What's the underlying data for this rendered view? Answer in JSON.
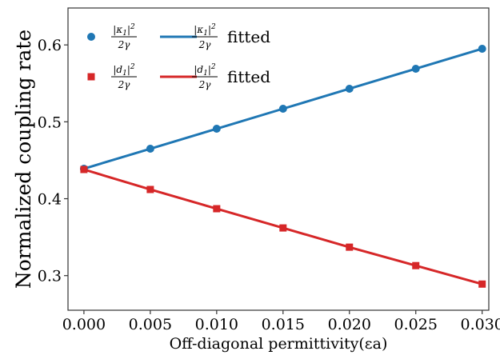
{
  "chart_data": {
    "type": "scatter",
    "xlabel": "Off-diagonal permittivity(εa)",
    "ylabel": "Normalized coupling rate",
    "xlim": [
      -0.0012,
      0.0305
    ],
    "ylim": [
      0.255,
      0.648
    ],
    "x_ticks": [
      "0.000",
      "0.005",
      "0.010",
      "0.015",
      "0.020",
      "0.025",
      "0.030"
    ],
    "y_ticks": [
      "0.3",
      "0.4",
      "0.5",
      "0.6"
    ],
    "grid": false,
    "legend_position": "top-left",
    "x": [
      0.0,
      0.005,
      0.01,
      0.015,
      0.02,
      0.025,
      0.03
    ],
    "series": [
      {
        "name": "|κ1|²/2γ",
        "marker": "circle",
        "color": "#1f77b4",
        "values": [
          0.439,
          0.465,
          0.491,
          0.517,
          0.543,
          0.569,
          0.595
        ]
      },
      {
        "name": "|d1|²/2γ",
        "marker": "square",
        "color": "#d62728",
        "values": [
          0.438,
          0.412,
          0.387,
          0.362,
          0.337,
          0.313,
          0.289
        ]
      },
      {
        "name": "|κ1|²/2γ fitted",
        "style": "line",
        "color": "#1f77b4",
        "values": [
          0.439,
          0.465,
          0.491,
          0.517,
          0.543,
          0.569,
          0.595
        ]
      },
      {
        "name": "|d1|²/2γ fitted",
        "style": "line",
        "color": "#d62728",
        "values": [
          0.438,
          0.412,
          0.387,
          0.362,
          0.337,
          0.313,
          0.289
        ]
      }
    ],
    "legend": [
      {
        "num_base": "|κ",
        "num_sub": "1",
        "num_tail": "|",
        "num_sup": "2",
        "den": "2γ",
        "suffix": "",
        "style": "marker",
        "marker": "circle",
        "color": "#1f77b4"
      },
      {
        "num_base": "|κ",
        "num_sub": "1",
        "num_tail": "|",
        "num_sup": "2",
        "den": "2γ",
        "suffix": "fitted",
        "style": "line",
        "color": "#1f77b4"
      },
      {
        "num_base": "|d",
        "num_sub": "1",
        "num_tail": "|",
        "num_sup": "2",
        "den": "2γ",
        "suffix": "",
        "style": "marker",
        "marker": "square",
        "color": "#d62728"
      },
      {
        "num_base": "|d",
        "num_sub": "1",
        "num_tail": "|",
        "num_sup": "2",
        "den": "2γ",
        "suffix": "fitted",
        "style": "line",
        "color": "#d62728"
      }
    ]
  }
}
